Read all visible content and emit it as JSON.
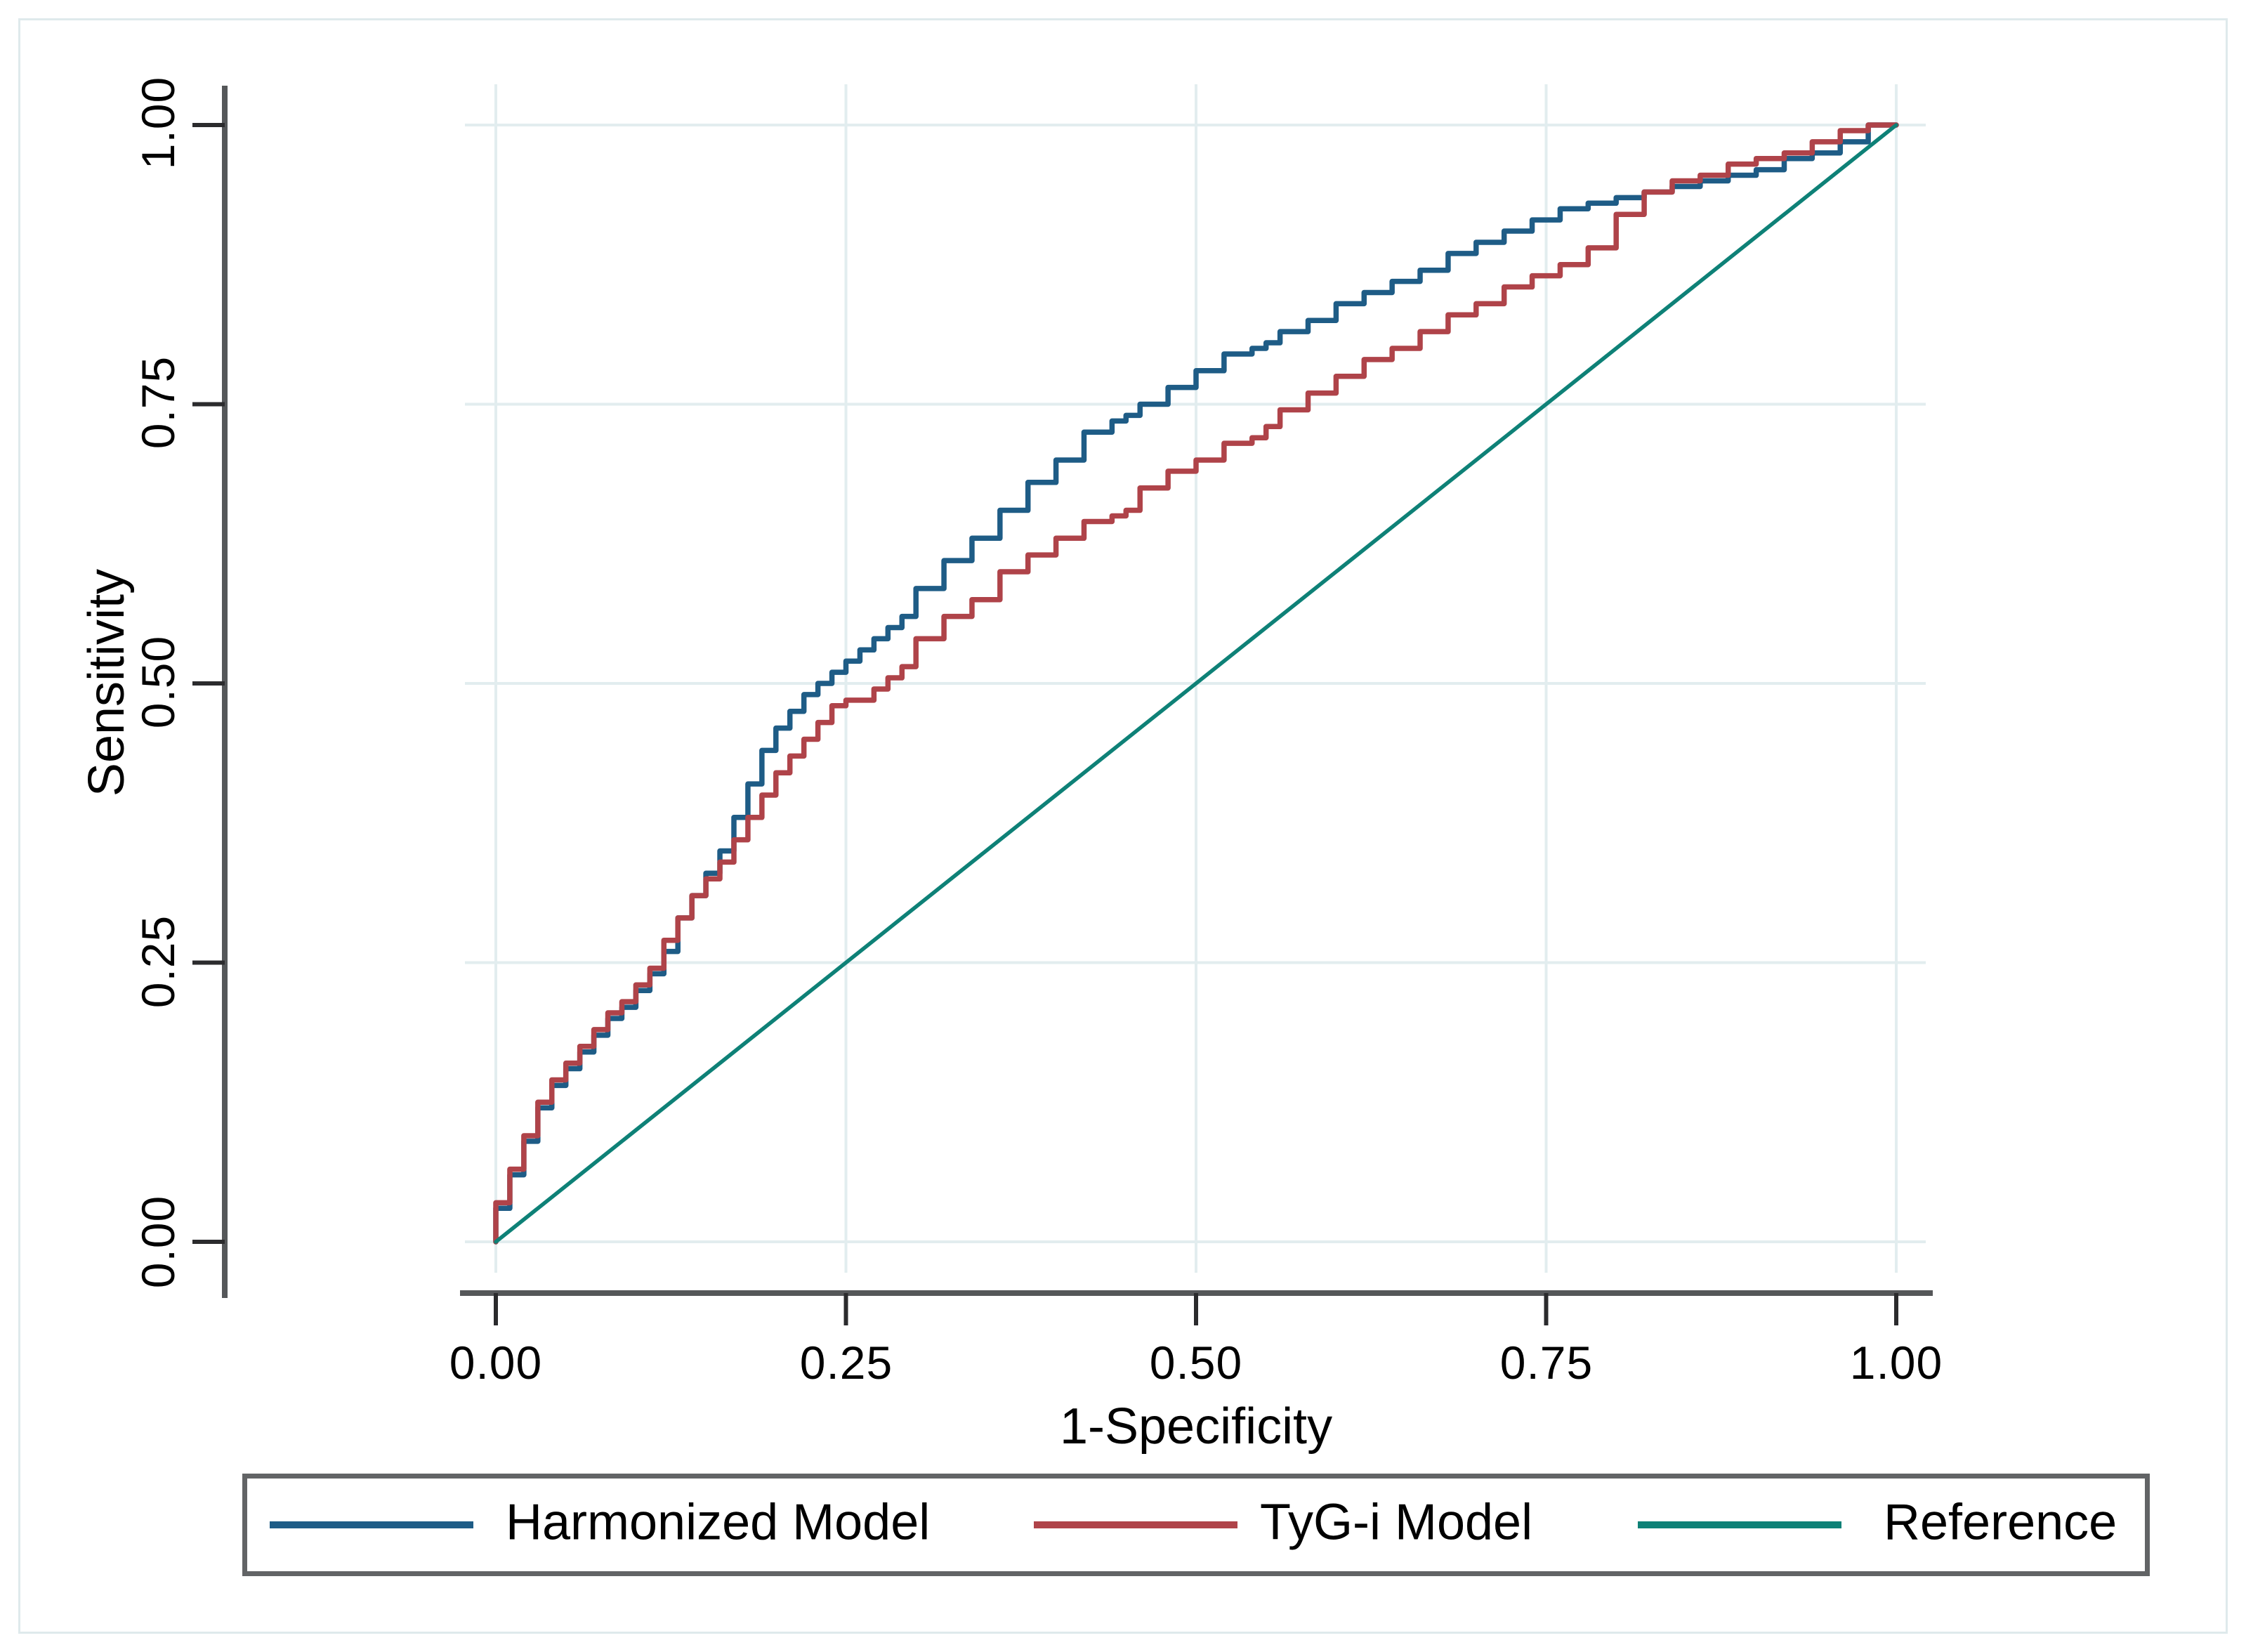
{
  "figure": {
    "y_axis_title": "Sensitivity",
    "x_axis_title": "1-Specificity",
    "x_tick_labels": [
      "0.00",
      "0.25",
      "0.50",
      "0.75",
      "1.00"
    ],
    "y_tick_labels": [
      "0.00",
      "0.25",
      "0.50",
      "0.75",
      "1.00"
    ],
    "legend": [
      {
        "label": "Harmonized Model",
        "color": "#1e5c86"
      },
      {
        "label": "TyG-i Model",
        "color": "#af4349"
      },
      {
        "label": "Reference",
        "color": "#0e8177"
      }
    ]
  },
  "colors": {
    "harmonized_line": "#1e5c86",
    "tyg_line": "#af4349",
    "reference_line": "#0e8177",
    "gridline": "#e2edef",
    "axis_line": "#555759",
    "tick_mark": "#2b2b2d",
    "legend_border": "#626466",
    "figure_border": "#dfeaec",
    "text": "#000000"
  },
  "chart_data": {
    "type": "line",
    "xlabel": "1-Specificity",
    "ylabel": "Sensitivity",
    "xlim": [
      0,
      1
    ],
    "ylim": [
      0,
      1
    ],
    "x_ticks": [
      0,
      0.25,
      0.5,
      0.75,
      1.0
    ],
    "y_ticks": [
      0,
      0.25,
      0.5,
      0.75,
      1.0
    ],
    "grid": true,
    "legend_position": "bottom",
    "series": [
      {
        "name": "Harmonized Model",
        "color": "#1e5c86",
        "style": "step",
        "x": [
          0,
          0.01,
          0.02,
          0.03,
          0.04,
          0.05,
          0.06,
          0.07,
          0.08,
          0.09,
          0.1,
          0.11,
          0.12,
          0.13,
          0.14,
          0.15,
          0.16,
          0.17,
          0.18,
          0.19,
          0.2,
          0.21,
          0.22,
          0.23,
          0.24,
          0.25,
          0.26,
          0.27,
          0.28,
          0.29,
          0.3,
          0.32,
          0.34,
          0.36,
          0.38,
          0.4,
          0.42,
          0.44,
          0.45,
          0.46,
          0.48,
          0.5,
          0.52,
          0.54,
          0.55,
          0.56,
          0.58,
          0.6,
          0.62,
          0.64,
          0.66,
          0.68,
          0.7,
          0.72,
          0.74,
          0.76,
          0.78,
          0.8,
          0.82,
          0.84,
          0.86,
          0.88,
          0.9,
          0.92,
          0.94,
          0.96,
          0.98,
          1.0
        ],
        "y": [
          0,
          0.03,
          0.06,
          0.09,
          0.12,
          0.14,
          0.155,
          0.17,
          0.185,
          0.2,
          0.21,
          0.225,
          0.24,
          0.26,
          0.29,
          0.31,
          0.33,
          0.35,
          0.38,
          0.41,
          0.44,
          0.46,
          0.475,
          0.49,
          0.5,
          0.51,
          0.52,
          0.53,
          0.54,
          0.55,
          0.56,
          0.585,
          0.61,
          0.63,
          0.655,
          0.68,
          0.7,
          0.725,
          0.735,
          0.74,
          0.75,
          0.765,
          0.78,
          0.795,
          0.8,
          0.805,
          0.815,
          0.825,
          0.84,
          0.85,
          0.86,
          0.87,
          0.885,
          0.895,
          0.905,
          0.915,
          0.925,
          0.93,
          0.935,
          0.94,
          0.945,
          0.95,
          0.955,
          0.96,
          0.97,
          0.975,
          0.985,
          1.0
        ]
      },
      {
        "name": "TyG-i Model",
        "color": "#af4349",
        "style": "step",
        "x": [
          0,
          0.01,
          0.02,
          0.03,
          0.04,
          0.05,
          0.06,
          0.07,
          0.08,
          0.09,
          0.1,
          0.11,
          0.12,
          0.13,
          0.14,
          0.15,
          0.16,
          0.17,
          0.18,
          0.19,
          0.2,
          0.21,
          0.22,
          0.23,
          0.24,
          0.25,
          0.26,
          0.27,
          0.28,
          0.29,
          0.3,
          0.32,
          0.34,
          0.36,
          0.38,
          0.4,
          0.42,
          0.44,
          0.45,
          0.46,
          0.48,
          0.5,
          0.52,
          0.54,
          0.55,
          0.56,
          0.58,
          0.6,
          0.62,
          0.64,
          0.66,
          0.68,
          0.7,
          0.72,
          0.74,
          0.76,
          0.78,
          0.8,
          0.82,
          0.84,
          0.86,
          0.88,
          0.9,
          0.92,
          0.94,
          0.96,
          0.98,
          1.0
        ],
        "y": [
          0,
          0.035,
          0.065,
          0.095,
          0.125,
          0.145,
          0.16,
          0.175,
          0.19,
          0.205,
          0.215,
          0.23,
          0.245,
          0.27,
          0.29,
          0.31,
          0.325,
          0.34,
          0.36,
          0.38,
          0.4,
          0.42,
          0.435,
          0.45,
          0.465,
          0.48,
          0.485,
          0.485,
          0.495,
          0.505,
          0.515,
          0.54,
          0.56,
          0.575,
          0.6,
          0.615,
          0.63,
          0.645,
          0.65,
          0.655,
          0.675,
          0.69,
          0.7,
          0.715,
          0.72,
          0.73,
          0.745,
          0.76,
          0.775,
          0.79,
          0.8,
          0.815,
          0.83,
          0.84,
          0.855,
          0.865,
          0.875,
          0.89,
          0.92,
          0.94,
          0.95,
          0.955,
          0.965,
          0.97,
          0.975,
          0.985,
          0.995,
          1.0
        ]
      },
      {
        "name": "Reference",
        "color": "#0e8177",
        "style": "straight",
        "x": [
          0,
          1
        ],
        "y": [
          0,
          1
        ]
      }
    ]
  }
}
